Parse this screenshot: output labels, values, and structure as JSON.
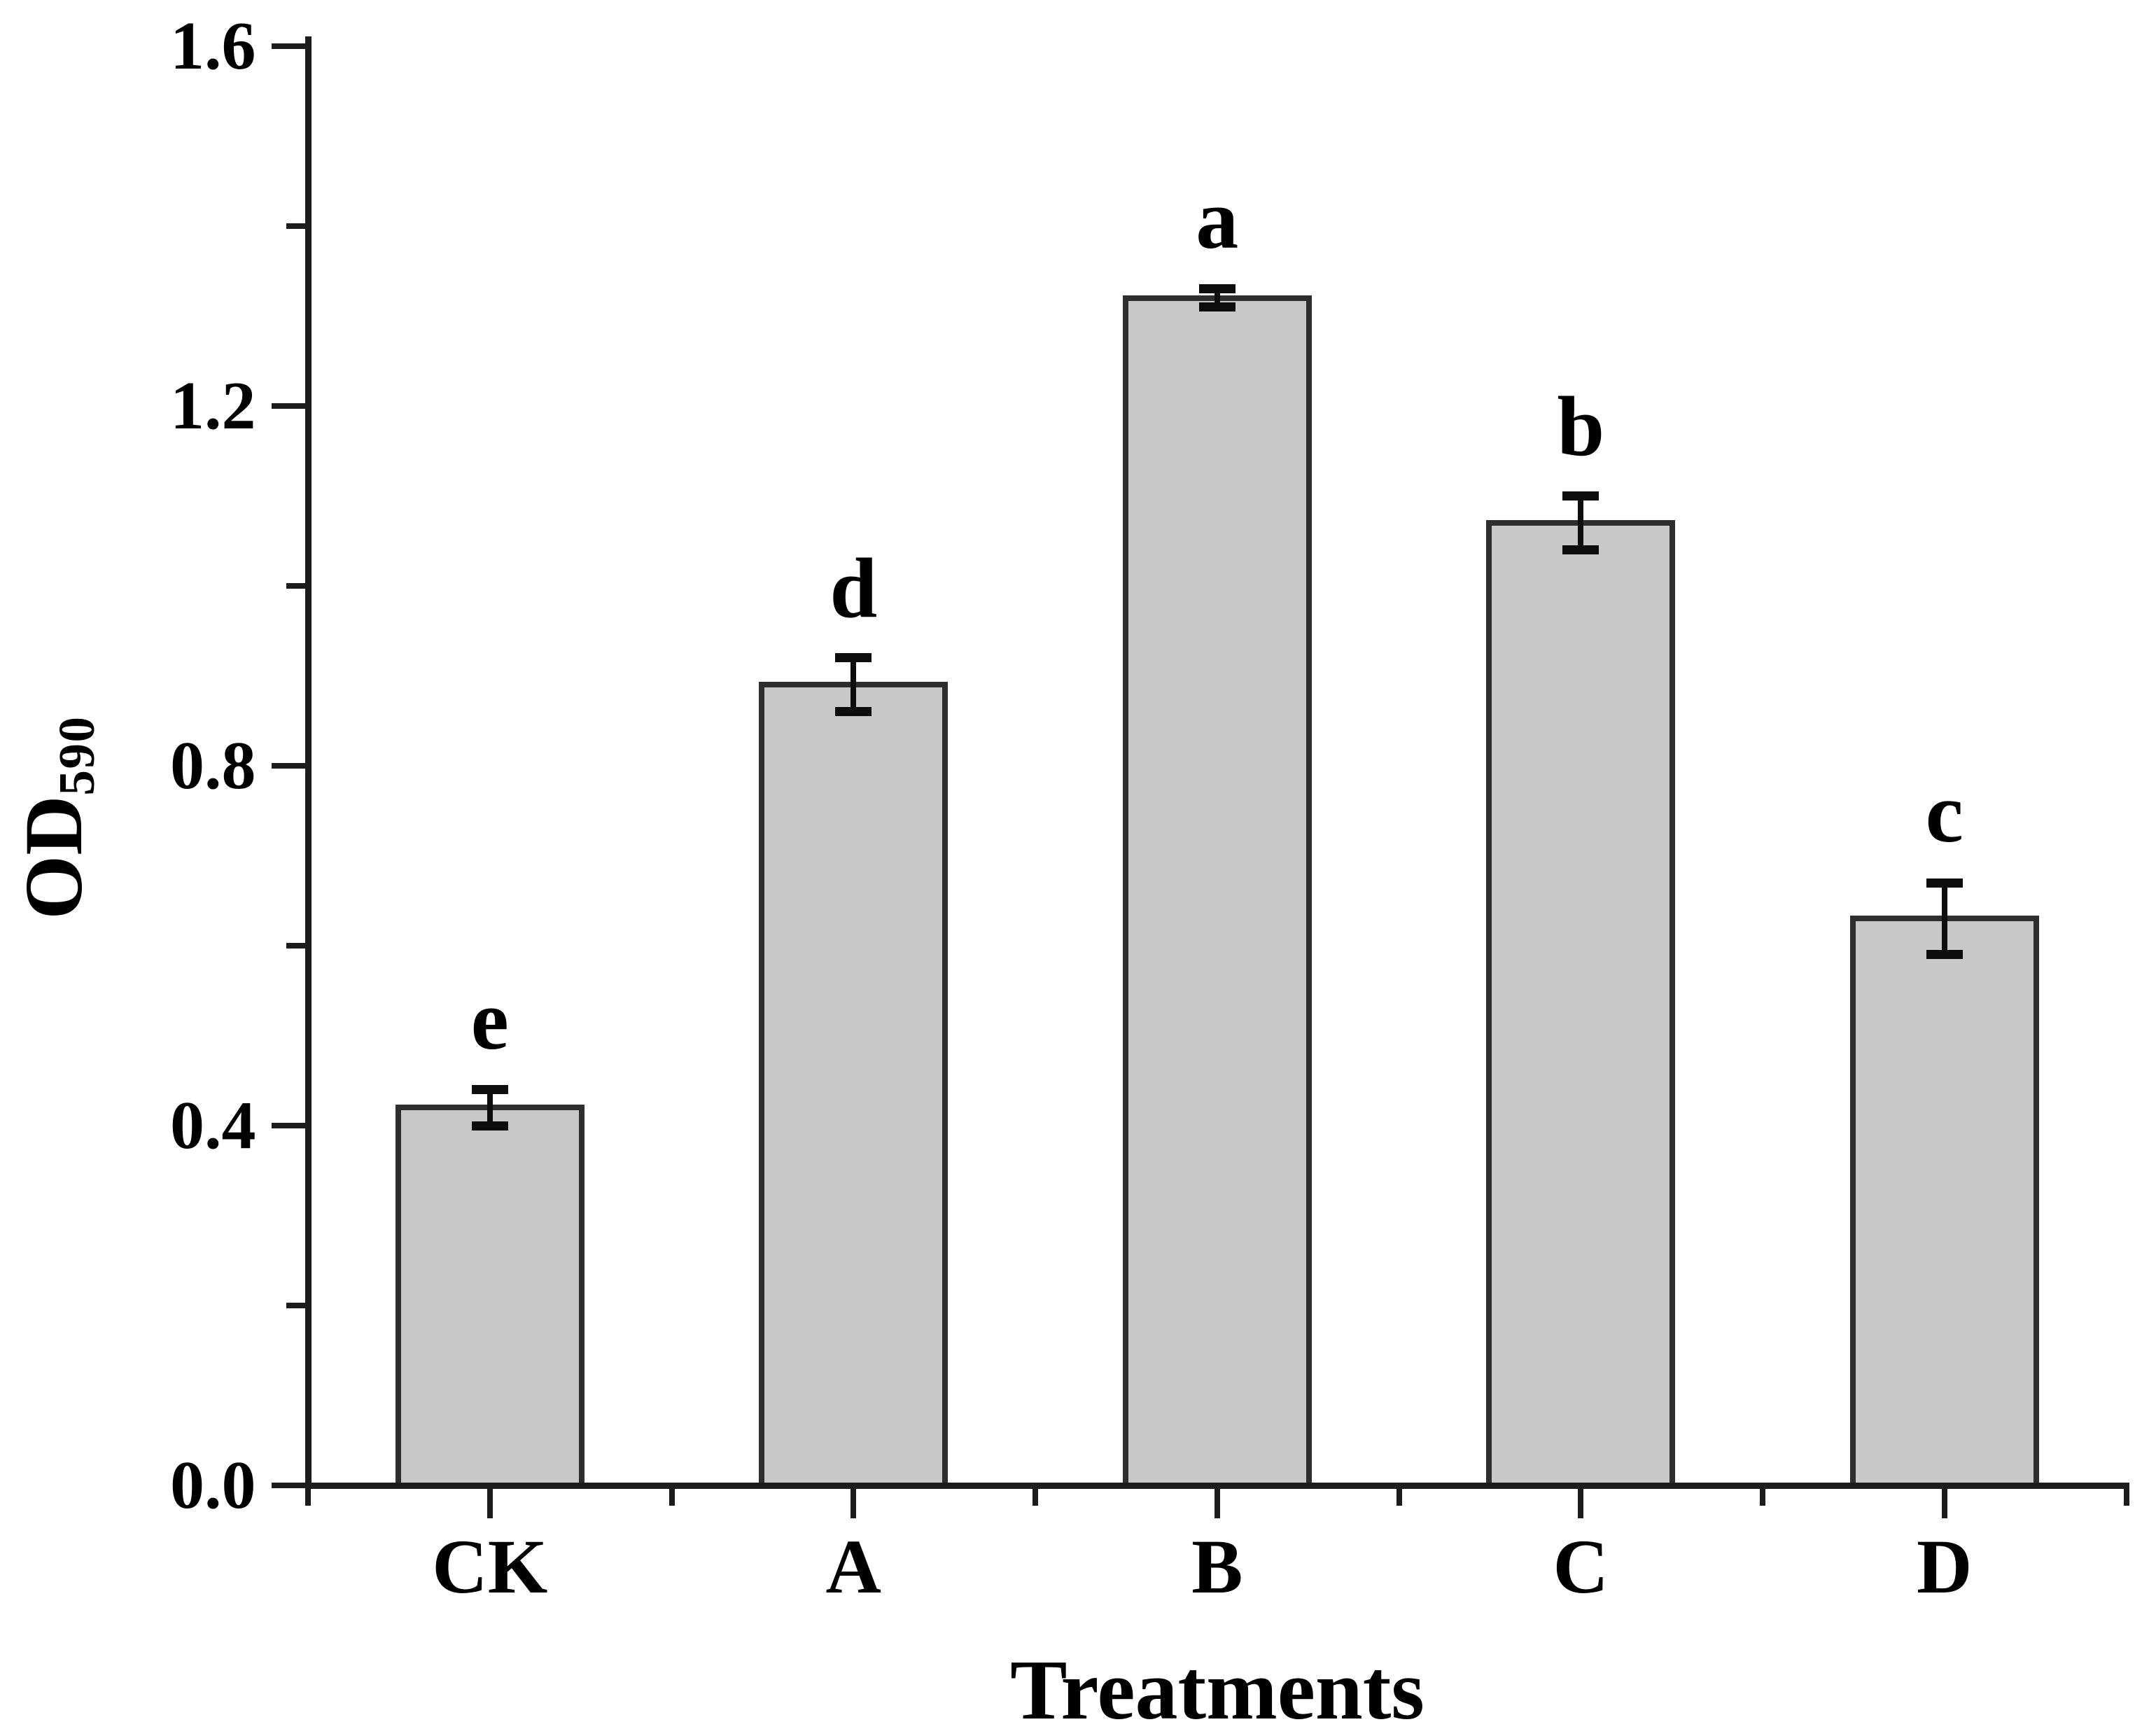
{
  "figure": {
    "background": "#ffffff",
    "text_color": "#000000",
    "axis_color": "#1c1c1c"
  },
  "chart_data": {
    "type": "bar",
    "title": "",
    "xlabel": "Treatments",
    "ylabel": "OD",
    "ylabel_subscript": "590",
    "categories": [
      "CK",
      "A",
      "B",
      "C",
      "D"
    ],
    "values": [
      0.42,
      0.89,
      1.32,
      1.07,
      0.63
    ],
    "errors": [
      0.02,
      0.03,
      0.01,
      0.03,
      0.04
    ],
    "sig_letters": [
      "e",
      "d",
      "a",
      "b",
      "c"
    ],
    "ylim": [
      0,
      1.6
    ],
    "ytick_step_major": 0.4,
    "ytick_step_minor": 0.2,
    "ytick_labels": [
      "0.0",
      "0.4",
      "0.8",
      "1.2",
      "1.6"
    ],
    "grid": false,
    "legend": false,
    "bar_fill": "#c8c8c8",
    "bar_edge": "#2e2e2e",
    "error_color": "#0d0d0d"
  }
}
